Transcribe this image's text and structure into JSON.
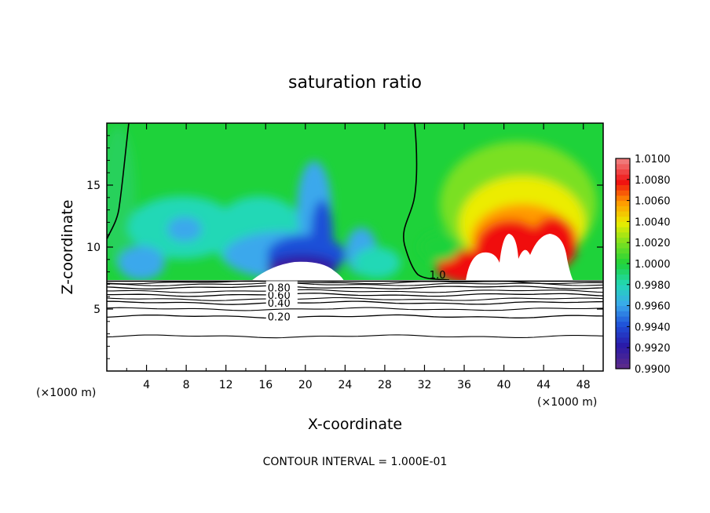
{
  "chart_data": {
    "type": "heatmap",
    "title": "saturation ratio",
    "xlabel": "X-coordinate",
    "ylabel": "Z-coordinate",
    "x_unit": "(×1000 m)",
    "x_unit_right": "(×1000 m)",
    "xlim": [
      0,
      50
    ],
    "ylim": [
      0,
      20
    ],
    "xticks": [
      4,
      8,
      12,
      16,
      20,
      24,
      28,
      32,
      36,
      40,
      44,
      48
    ],
    "yticks": [
      5,
      10,
      15
    ],
    "colorbar": {
      "min": 0.99,
      "max": 1.01,
      "tick_labels": [
        "0.9900",
        "0.9920",
        "0.9940",
        "0.9960",
        "0.9980",
        "1.0000",
        "1.0020",
        "1.0040",
        "1.0060",
        "1.0080",
        "1.0100"
      ],
      "colors": [
        "#5a2a8c",
        "#2a1aa8",
        "#1f4fd8",
        "#3aa8ec",
        "#22d8b6",
        "#1ed23a",
        "#7ae020",
        "#ecec00",
        "#ff9a00",
        "#f01010",
        "#f07878"
      ]
    },
    "contour_lines": [
      {
        "level": 0.2,
        "label": "0.20",
        "z": 4.4
      },
      {
        "level": 0.4,
        "label": "0.40",
        "z": 5.5
      },
      {
        "level": 0.6,
        "label": "0.60",
        "z": 6.15
      },
      {
        "level": 0.8,
        "label": "0.80",
        "z": 6.75
      },
      {
        "level": 1.0,
        "label": "1.0",
        "x": 32.5,
        "z": 7.8
      }
    ],
    "contour_levels_unlabeled_z": [
      2.8,
      5.0,
      5.8,
      6.45,
      7.0,
      7.15
    ],
    "footer": "CONTOUR INTERVAL = 1.000E-01"
  }
}
